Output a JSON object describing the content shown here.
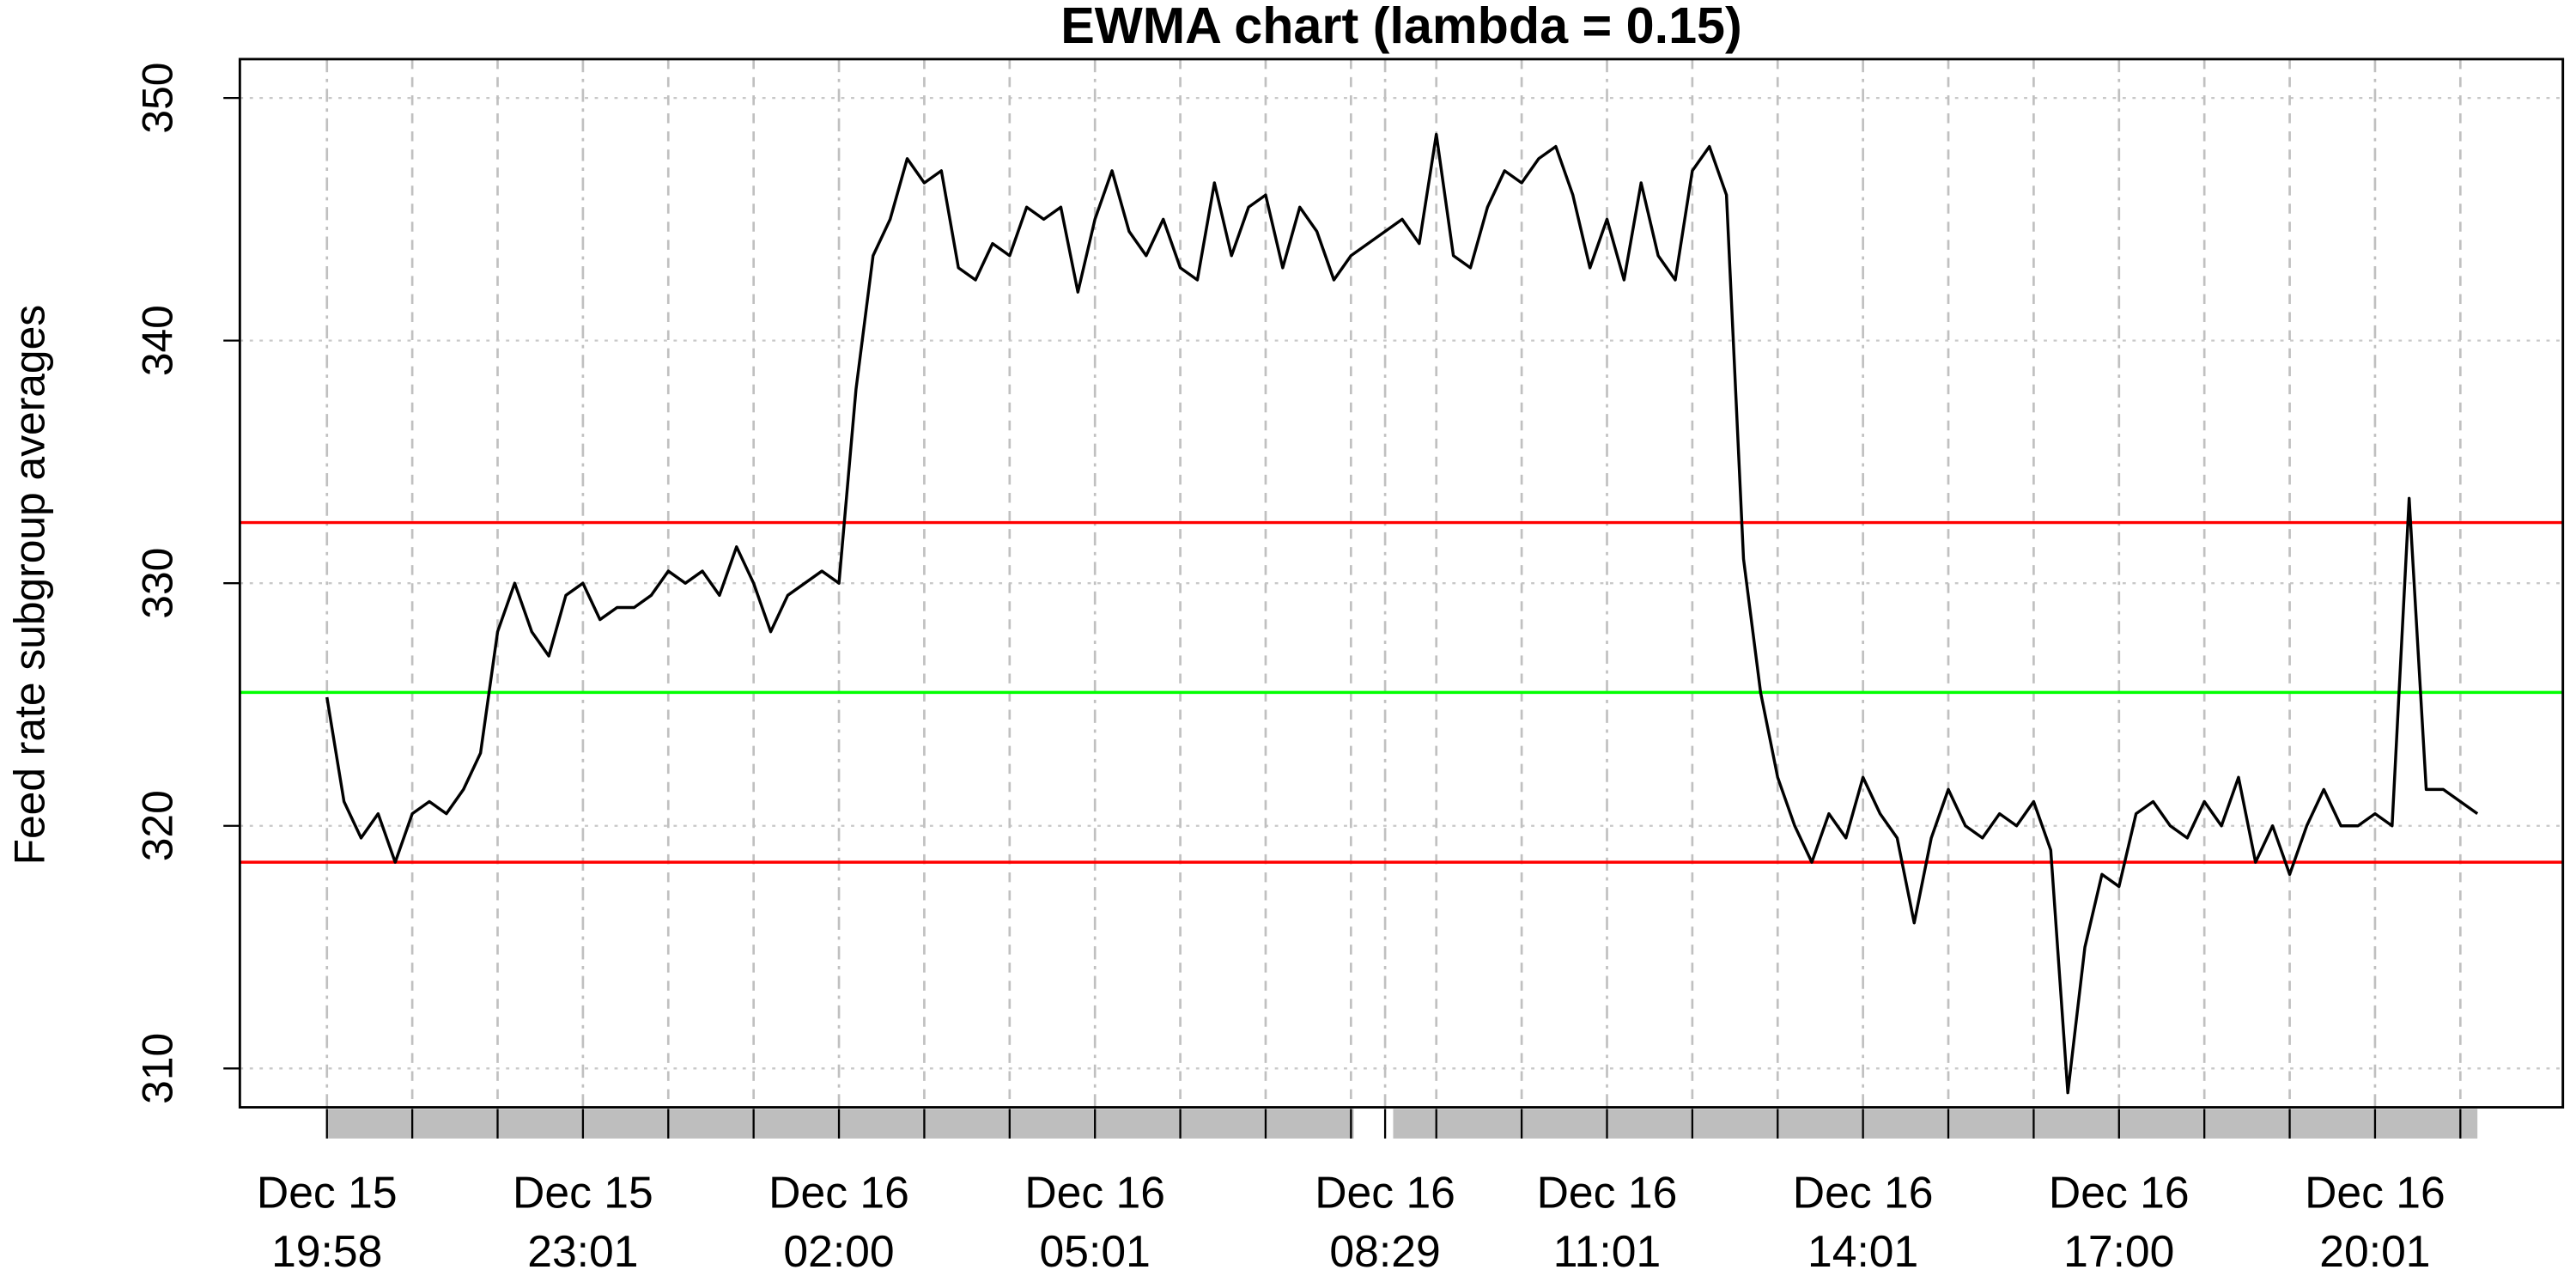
{
  "chart_data": {
    "type": "line",
    "title": "EWMA chart (lambda = 0.15)",
    "y_label": "Feed rate subgroup averages",
    "categories": [
      "Dec 15 19:58",
      null,
      null,
      null,
      null,
      null,
      null,
      null,
      null,
      null,
      null,
      null,
      null,
      null,
      null,
      "Dec 15 23:01",
      null,
      null,
      null,
      null,
      null,
      null,
      null,
      null,
      null,
      null,
      null,
      null,
      null,
      null,
      "Dec 16 02:00",
      null,
      null,
      null,
      null,
      null,
      null,
      null,
      null,
      null,
      null,
      null,
      null,
      null,
      null,
      "Dec 16 05:01",
      null,
      null,
      null,
      null,
      null,
      null,
      null,
      null,
      null,
      null,
      null,
      null,
      null,
      null,
      null,
      null,
      "Dec 16 08:29",
      null,
      null,
      null,
      null,
      null,
      null,
      null,
      null,
      null,
      null,
      null,
      null,
      "Dec 16 11:01",
      null,
      null,
      null,
      null,
      null,
      null,
      null,
      null,
      null,
      null,
      null,
      null,
      null,
      null,
      "Dec 16 14:01",
      null,
      null,
      null,
      null,
      null,
      null,
      null,
      null,
      null,
      null,
      null,
      null,
      null,
      null,
      "Dec 16 17:00",
      null,
      null,
      null,
      null,
      null,
      null,
      null,
      null,
      null,
      null,
      null,
      null,
      null,
      null,
      "Dec 16 20:01",
      null,
      null,
      null,
      null,
      null,
      null
    ],
    "series": [
      {
        "color": "#000000",
        "values": [
          325.3,
          321,
          319.5,
          320.5,
          318.5,
          320.5,
          321,
          320.5,
          321.5,
          323,
          328,
          330,
          328,
          327,
          329.5,
          330,
          328.5,
          329,
          329,
          329.5,
          330.5,
          330,
          330.5,
          329.5,
          331.5,
          330,
          328,
          329.5,
          330,
          330.5,
          330,
          338,
          343.5,
          345,
          347.5,
          346.5,
          347,
          343,
          342.5,
          344,
          343.5,
          345.5,
          345,
          345.5,
          342,
          345,
          347,
          344.5,
          343.5,
          345,
          343,
          342.5,
          346.5,
          343.5,
          345.5,
          346,
          343,
          345.5,
          344.5,
          342.5,
          343.5,
          344,
          344.5,
          345,
          344,
          348.5,
          343.5,
          343,
          345.5,
          347,
          346.5,
          347.5,
          348,
          346,
          343,
          345,
          342.5,
          346.5,
          343.5,
          342.5,
          347,
          348,
          346,
          331,
          325.5,
          322,
          320,
          318.5,
          320.5,
          319.5,
          322,
          320.5,
          319.5,
          316,
          319.5,
          321.5,
          320,
          319.5,
          320.5,
          320,
          321,
          319,
          309,
          315,
          318,
          317.5,
          320.5,
          321,
          320,
          319.5,
          321,
          320,
          322,
          318.5,
          320,
          318,
          320,
          321.5,
          320,
          320,
          320.5,
          320,
          333.5,
          321.5,
          321.5,
          321,
          320.5
        ]
      }
    ],
    "reference_lines": [
      {
        "value": 332.5,
        "color": "#ff0000"
      },
      {
        "value": 325.5,
        "color": "#00ff00"
      },
      {
        "value": 318.5,
        "color": "#ff0000"
      }
    ],
    "ylim": [
      308.4,
      351.6
    ],
    "yticks": [
      310,
      320,
      330,
      340,
      350
    ],
    "grid": true
  }
}
